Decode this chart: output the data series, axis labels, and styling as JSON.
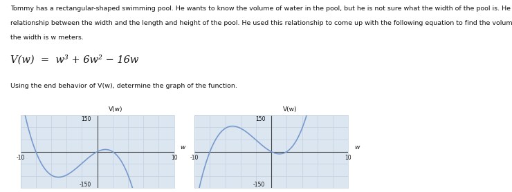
{
  "para1": "Tommy has a rectangular-shaped swimming pool. He wants to know the volume of water in the pool, but he is not sure what the width of the pool is. He knows the",
  "para2": "relationship between the width and the length and height of the pool. He used this relationship to come up with the following equation to find the volume of the pool when",
  "para3": "the width is w meters.",
  "equation": "V(w)  =  w³ + 6w² − 16w",
  "subtitle": "Using the end behavior of V(w), determine the graph of the function.",
  "xmin": -10,
  "xmax": 10,
  "ymin": -150,
  "ymax": 150,
  "curve_color": "#7799cc",
  "grid_color": "#c0cfe0",
  "axis_color": "#444444",
  "bg_color": "#dce6f0",
  "text_color": "#111111",
  "fig_bg": "#ffffff"
}
